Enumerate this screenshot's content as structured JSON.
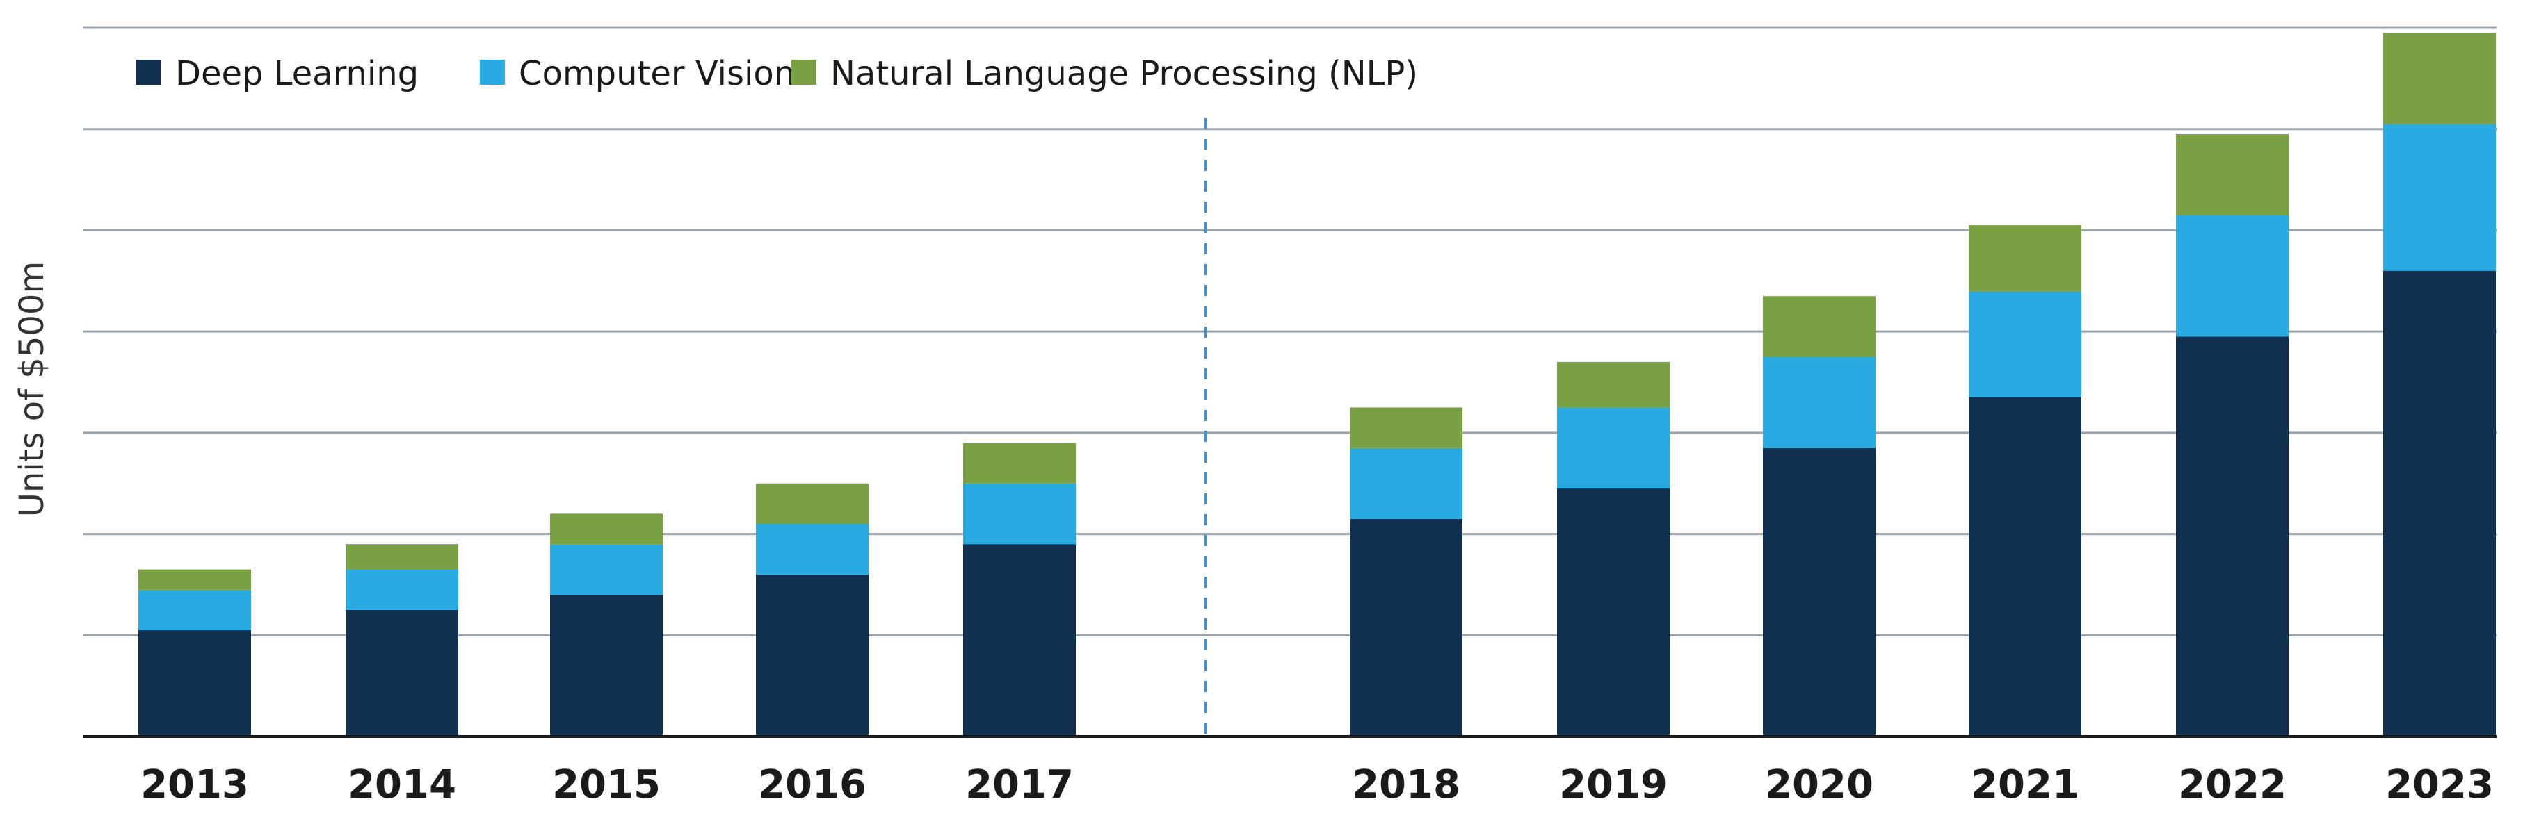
{
  "chart_data": {
    "type": "bar",
    "stacked": true,
    "title": "",
    "xlabel": "",
    "ylabel": "Units of $500m",
    "ylim": [
      0,
      14
    ],
    "grid": true,
    "legend_position": "top-left",
    "categories": [
      "2013",
      "2014",
      "2015",
      "2016",
      "2017",
      "2018",
      "2019",
      "2020",
      "2021",
      "2022",
      "2023"
    ],
    "series": [
      {
        "name": "Deep Learning",
        "color": "#11304f",
        "values": [
          2.1,
          2.5,
          2.8,
          3.2,
          3.8,
          4.3,
          4.9,
          5.7,
          6.7,
          7.9,
          9.2
        ]
      },
      {
        "name": "Computer Vision",
        "color": "#29aae1",
        "values": [
          0.8,
          0.8,
          1.0,
          1.0,
          1.2,
          1.4,
          1.6,
          1.8,
          2.1,
          2.4,
          2.9
        ]
      },
      {
        "name": "Natural Language Processing (NLP)",
        "color": "#79a042",
        "values": [
          0.4,
          0.5,
          0.6,
          0.8,
          0.8,
          0.8,
          0.9,
          1.2,
          1.3,
          1.6,
          1.8
        ]
      }
    ],
    "divider_after_category": "2017"
  }
}
